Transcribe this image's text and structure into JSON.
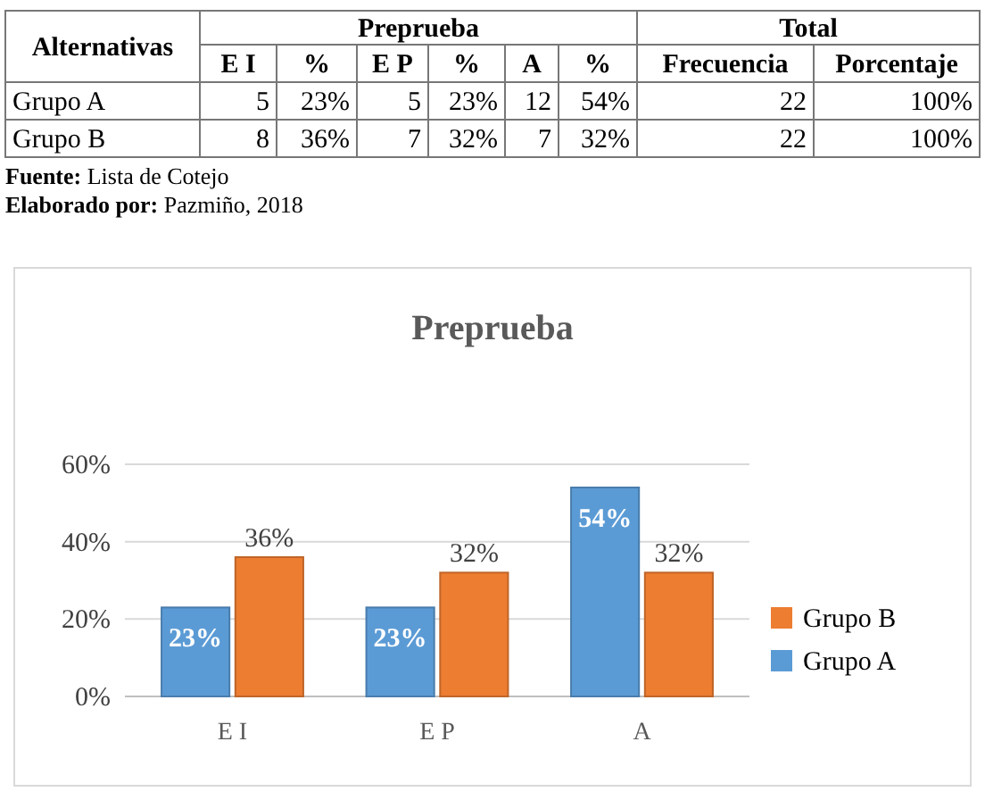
{
  "chart_data": [
    {
      "type": "other",
      "annotations": [
        "Alternativas",
        "Preprueba",
        "Total",
        "E I",
        "%",
        "E P",
        "%",
        "A",
        "%",
        "Frecuencia",
        "Porcentaje",
        "Grupo A",
        "5",
        "23%",
        "5",
        "23%",
        "12",
        "54%",
        "22",
        "100%",
        "Grupo B",
        "8",
        "36%",
        "7",
        "32%",
        "7",
        "32%",
        "22",
        "100%",
        "Fuente: Lista de Cotejo",
        "Elaborado por: Pazmiño, 2018"
      ]
    },
    {
      "type": "bar",
      "title": "Preprueba",
      "categories": [
        "E I",
        "E P",
        "A"
      ],
      "series": [
        {
          "name": "Grupo A",
          "color": "#5b9bd5",
          "values": [
            23,
            23,
            54
          ],
          "value_labels": [
            "23%",
            "23%",
            "54%"
          ]
        },
        {
          "name": "Grupo B",
          "color": "#ed7d31",
          "values": [
            36,
            32,
            32
          ],
          "value_labels": [
            "36%",
            "32%",
            "32%"
          ]
        }
      ],
      "ylim": [
        0,
        60
      ],
      "yticks": [
        {
          "value": 0,
          "label": "0%"
        },
        {
          "value": 20,
          "label": "20%"
        },
        {
          "value": 40,
          "label": "40%"
        },
        {
          "value": 60,
          "label": "60%"
        }
      ],
      "grid": "y",
      "legend": "right"
    }
  ]
}
